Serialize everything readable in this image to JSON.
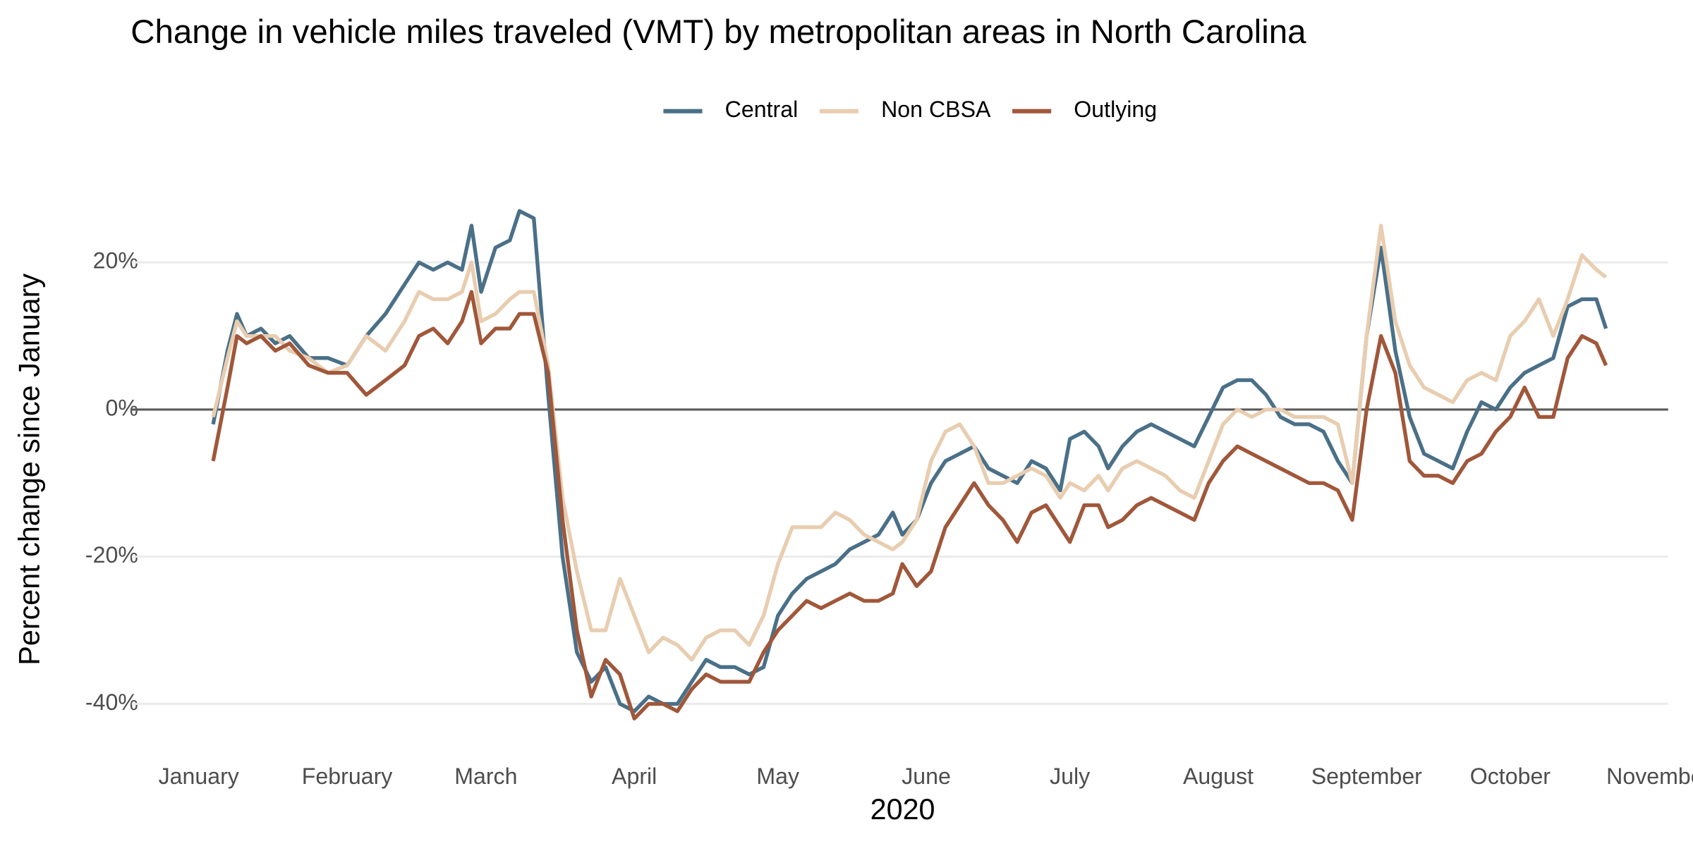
{
  "chart_data": {
    "type": "line",
    "title": "Change in vehicle miles traveled (VMT) by metropolitan areas in North Carolina",
    "xlabel": "2020",
    "ylabel": "Percent change since January",
    "x": [
      4,
      7,
      9,
      11,
      14,
      17,
      20,
      24,
      28,
      32,
      36,
      40,
      44,
      47,
      50,
      53,
      56,
      58,
      60,
      63,
      66,
      68,
      71,
      74,
      77,
      80,
      83,
      86,
      89,
      92,
      95,
      98,
      101,
      104,
      107,
      110,
      113,
      116,
      119,
      122,
      125,
      128,
      131,
      134,
      137,
      140,
      143,
      146,
      148,
      151,
      154,
      157,
      160,
      163,
      166,
      169,
      172,
      175,
      178,
      181,
      183,
      186,
      189,
      191,
      194,
      197,
      200,
      203,
      206,
      209,
      212,
      215,
      218,
      221,
      224,
      227,
      230,
      233,
      236,
      239,
      242,
      245,
      248,
      251,
      254,
      257,
      260,
      263,
      266,
      269,
      272,
      275,
      278,
      281,
      284,
      287,
      290,
      293,
      295
    ],
    "series": [
      {
        "name": "Central",
        "color": "#4a7088",
        "values": [
          -2,
          8,
          13,
          10,
          11,
          9,
          10,
          7,
          7,
          6,
          10,
          13,
          17,
          20,
          19,
          20,
          19,
          25,
          16,
          22,
          23,
          27,
          26,
          2,
          -20,
          -33,
          -37,
          -35,
          -40,
          -41,
          -39,
          -40,
          -40,
          -37,
          -34,
          -35,
          -35,
          -36,
          -35,
          -28,
          -25,
          -23,
          -22,
          -21,
          -19,
          -18,
          -17,
          -14,
          -17,
          -15,
          -10,
          -7,
          -6,
          -5,
          -8,
          -9,
          -10,
          -7,
          -8,
          -11,
          -4,
          -3,
          -5,
          -8,
          -5,
          -3,
          -2,
          -3,
          -4,
          -5,
          -1,
          3,
          4,
          4,
          2,
          -1,
          -2,
          -2,
          -3,
          -7,
          -10,
          10,
          22,
          8,
          -1,
          -6,
          -7,
          -8,
          -3,
          1,
          0,
          3,
          5,
          6,
          7,
          14,
          15,
          15,
          11
        ]
      },
      {
        "name": "Non CBSA",
        "color": "#e8cdb0",
        "values": [
          -1,
          7,
          12,
          10,
          10,
          10,
          8,
          7,
          5,
          6,
          10,
          8,
          12,
          16,
          15,
          15,
          16,
          20,
          12,
          13,
          15,
          16,
          16,
          6,
          -12,
          -22,
          -30,
          -30,
          -23,
          -28,
          -33,
          -31,
          -32,
          -34,
          -31,
          -30,
          -30,
          -32,
          -28,
          -21,
          -16,
          -16,
          -16,
          -14,
          -15,
          -17,
          -18,
          -19,
          -18,
          -15,
          -7,
          -3,
          -2,
          -5,
          -10,
          -10,
          -9,
          -8,
          -9,
          -12,
          -10,
          -11,
          -9,
          -11,
          -8,
          -7,
          -8,
          -9,
          -11,
          -12,
          -7,
          -2,
          0,
          -1,
          0,
          0,
          -1,
          -1,
          -1,
          -2,
          -10,
          10,
          25,
          12,
          6,
          3,
          2,
          1,
          4,
          5,
          4,
          10,
          12,
          15,
          10,
          15,
          21,
          19,
          18
        ]
      },
      {
        "name": "Outlying",
        "color": "#a0573a",
        "values": [
          -7,
          3,
          10,
          9,
          10,
          8,
          9,
          6,
          5,
          5,
          2,
          4,
          6,
          10,
          11,
          9,
          12,
          16,
          9,
          11,
          11,
          13,
          13,
          5,
          -15,
          -30,
          -39,
          -34,
          -36,
          -42,
          -40,
          -40,
          -41,
          -38,
          -36,
          -37,
          -37,
          -37,
          -33,
          -30,
          -28,
          -26,
          -27,
          -26,
          -25,
          -26,
          -26,
          -25,
          -21,
          -24,
          -22,
          -16,
          -13,
          -10,
          -13,
          -15,
          -18,
          -14,
          -13,
          -16,
          -18,
          -13,
          -13,
          -16,
          -15,
          -13,
          -12,
          -13,
          -14,
          -15,
          -10,
          -7,
          -5,
          -6,
          -7,
          -8,
          -9,
          -10,
          -10,
          -11,
          -15,
          0,
          10,
          5,
          -7,
          -9,
          -9,
          -10,
          -7,
          -6,
          -3,
          -1,
          3,
          -1,
          -1,
          7,
          10,
          9,
          6
        ]
      }
    ],
    "xlim": [
      -13,
      308
    ],
    "xticks": [
      {
        "value": 1,
        "label": "January"
      },
      {
        "value": 32,
        "label": "February"
      },
      {
        "value": 61,
        "label": "March"
      },
      {
        "value": 92,
        "label": "April"
      },
      {
        "value": 122,
        "label": "May"
      },
      {
        "value": 153,
        "label": "June"
      },
      {
        "value": 183,
        "label": "July"
      },
      {
        "value": 214,
        "label": "August"
      },
      {
        "value": 245,
        "label": "September"
      },
      {
        "value": 275,
        "label": "October"
      },
      {
        "value": 306,
        "label": "November"
      }
    ],
    "ylim": [
      -47,
      30
    ],
    "yticks": [
      {
        "value": -40,
        "label": "-40%"
      },
      {
        "value": -20,
        "label": "-20%"
      },
      {
        "value": 0,
        "label": "0%"
      },
      {
        "value": 20,
        "label": "20%"
      }
    ],
    "grid": true,
    "zero_line": true,
    "legend": "top"
  }
}
